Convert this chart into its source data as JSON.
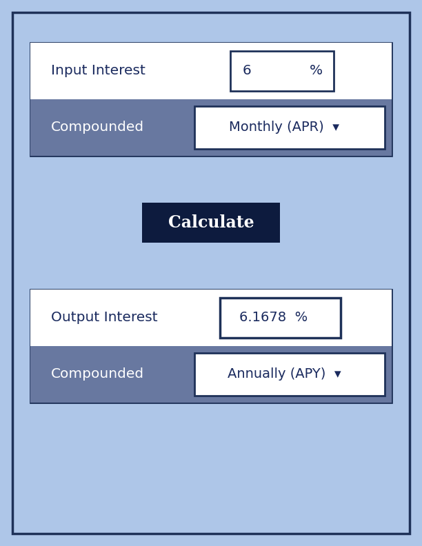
{
  "bg_color": "#aec6e8",
  "outer_border_color": "#1e3158",
  "panel_bg_white": "#ffffff",
  "panel_header_gray": "#6878a0",
  "dark_button_color": "#0d1b3e",
  "text_dark": "#1a2a5e",
  "text_white": "#ffffff",
  "input_label": "Input Interest",
  "input_value": "6",
  "input_unit": "%",
  "input_compound_label": "Compounded",
  "input_compound_value": "Monthly (APR)  ▾",
  "calculate_label": "Calculate",
  "output_label": "Output Interest",
  "output_value": "6.1678  %",
  "output_compound_label": "Compounded",
  "output_compound_value": "Annually (APY)  ▾",
  "fig_width": 6.12,
  "fig_height": 7.92,
  "dpi": 100
}
